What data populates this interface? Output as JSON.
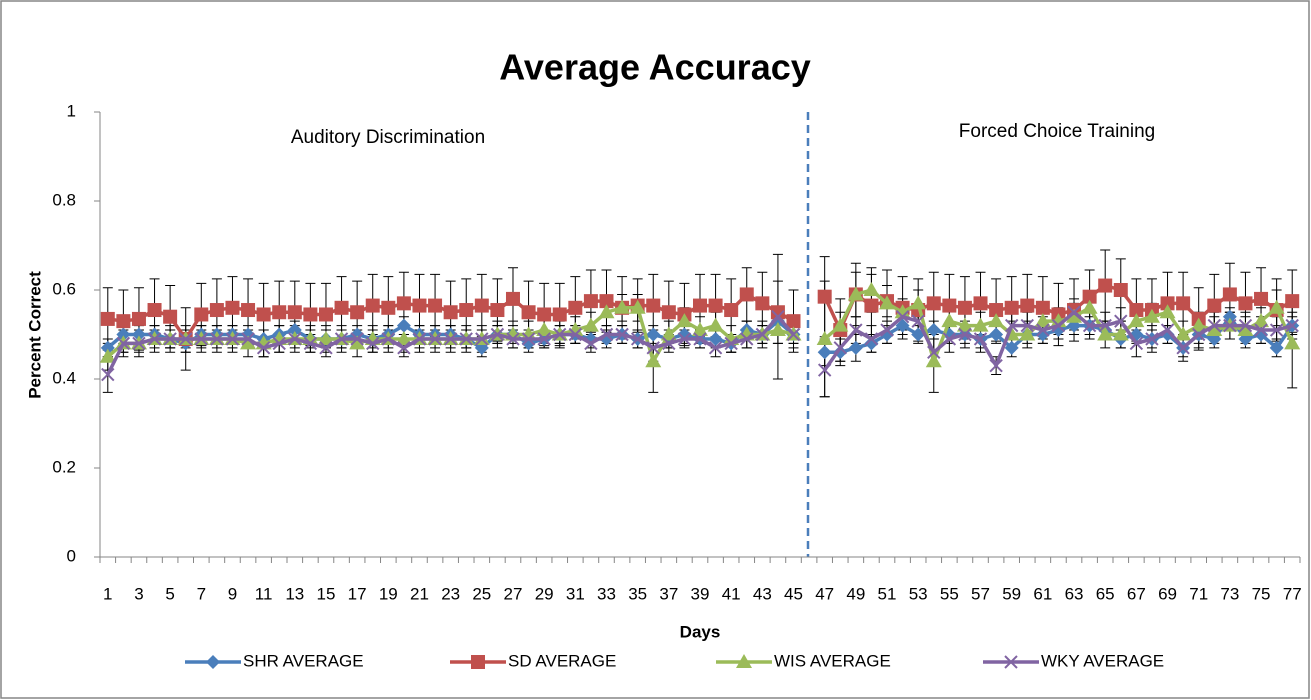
{
  "chart_data": {
    "type": "line",
    "title": "Average Accuracy",
    "x_label": "Days",
    "y_label": "Percent Correct",
    "annotations": [
      "Auditory Discrimination",
      "Forced Choice Training"
    ],
    "categories": [
      1,
      null,
      3,
      null,
      5,
      null,
      7,
      null,
      9,
      null,
      11,
      null,
      13,
      null,
      15,
      null,
      17,
      null,
      19,
      null,
      21,
      null,
      23,
      null,
      25,
      null,
      27,
      null,
      29,
      null,
      31,
      null,
      33,
      null,
      35,
      null,
      37,
      null,
      39,
      null,
      41,
      null,
      43,
      null,
      45,
      null,
      47,
      null,
      49,
      null,
      51,
      null,
      53,
      null,
      55,
      null,
      57,
      null,
      59,
      null,
      61,
      null,
      63,
      null,
      65,
      null,
      67,
      null,
      69,
      null,
      71,
      null,
      73,
      null,
      75,
      null,
      77
    ],
    "ylim": [
      0,
      1
    ],
    "yticks": [
      0,
      0.2,
      0.4,
      0.6,
      0.8,
      1
    ],
    "series": [
      {
        "name": "SHR AVERAGE",
        "color": "#4a7ebb",
        "marker": "diamond",
        "values": [
          0.47,
          0.5,
          0.5,
          0.5,
          0.49,
          0.48,
          0.5,
          0.5,
          0.5,
          0.5,
          0.49,
          0.5,
          0.51,
          0.49,
          0.49,
          0.49,
          0.5,
          0.49,
          0.5,
          0.52,
          0.5,
          0.5,
          0.5,
          0.49,
          0.47,
          0.5,
          0.5,
          0.48,
          0.49,
          0.5,
          0.5,
          0.49,
          0.49,
          0.5,
          0.49,
          0.5,
          0.49,
          0.5,
          0.49,
          0.49,
          0.48,
          0.51,
          0.5,
          0.53,
          0.5,
          null,
          0.46,
          0.46,
          0.47,
          0.48,
          0.5,
          0.52,
          0.5,
          0.51,
          0.5,
          0.5,
          0.49,
          0.5,
          0.47,
          0.5,
          0.5,
          0.51,
          0.52,
          0.52,
          0.51,
          0.49,
          0.5,
          0.49,
          0.5,
          0.47,
          0.5,
          0.49,
          0.54,
          0.49,
          0.5,
          0.47,
          0.52
        ],
        "errors": [
          0.02,
          0.02,
          0.02,
          0.02,
          0.02,
          0.02,
          0.02,
          0.02,
          0.02,
          0.02,
          0.02,
          0.02,
          0.02,
          0.02,
          0.02,
          0.02,
          0.02,
          0.02,
          0.02,
          0.02,
          0.02,
          0.02,
          0.02,
          0.02,
          0.02,
          0.02,
          0.02,
          0.02,
          0.02,
          0.02,
          0.02,
          0.02,
          0.02,
          0.02,
          0.02,
          0.02,
          0.02,
          0.02,
          0.02,
          0.02,
          0.02,
          0.02,
          0.02,
          0.02,
          0.02,
          null,
          0.03,
          0.03,
          0.03,
          0.02,
          0.02,
          0.02,
          0.02,
          0.02,
          0.02,
          0.02,
          0.02,
          0.02,
          0.02,
          0.02,
          0.02,
          0.02,
          0.02,
          0.02,
          0.02,
          0.02,
          0.02,
          0.02,
          0.02,
          0.02,
          0.02,
          0.02,
          0.02,
          0.02,
          0.02,
          0.02,
          0.02
        ]
      },
      {
        "name": "SD AVERAGE",
        "color": "#c0504d",
        "marker": "square",
        "values": [
          0.535,
          0.53,
          0.535,
          0.555,
          0.54,
          0.49,
          0.545,
          0.555,
          0.56,
          0.555,
          0.545,
          0.55,
          0.55,
          0.545,
          0.545,
          0.56,
          0.55,
          0.565,
          0.56,
          0.57,
          0.565,
          0.565,
          0.55,
          0.555,
          0.565,
          0.555,
          0.58,
          0.55,
          0.545,
          0.545,
          0.56,
          0.575,
          0.575,
          0.56,
          0.565,
          0.565,
          0.55,
          0.545,
          0.565,
          0.565,
          0.555,
          0.59,
          0.57,
          0.55,
          0.53,
          null,
          0.585,
          0.51,
          0.59,
          0.565,
          0.575,
          0.56,
          0.555,
          0.57,
          0.565,
          0.56,
          0.57,
          0.555,
          0.56,
          0.565,
          0.56,
          0.545,
          0.555,
          0.585,
          0.61,
          0.6,
          0.555,
          0.555,
          0.57,
          0.57,
          0.535,
          0.565,
          0.59,
          0.57,
          0.58,
          0.555,
          0.575
        ],
        "errors": [
          0.07,
          0.07,
          0.07,
          0.07,
          0.07,
          0.07,
          0.07,
          0.07,
          0.07,
          0.07,
          0.07,
          0.07,
          0.07,
          0.07,
          0.07,
          0.07,
          0.07,
          0.07,
          0.07,
          0.07,
          0.07,
          0.07,
          0.07,
          0.07,
          0.07,
          0.07,
          0.07,
          0.07,
          0.07,
          0.07,
          0.07,
          0.07,
          0.07,
          0.07,
          0.06,
          0.07,
          0.07,
          0.07,
          0.07,
          0.07,
          0.07,
          0.06,
          0.07,
          0.07,
          0.07,
          null,
          0.09,
          0.07,
          0.07,
          0.07,
          0.07,
          0.07,
          0.07,
          0.07,
          0.07,
          0.07,
          0.07,
          0.07,
          0.07,
          0.07,
          0.07,
          0.07,
          0.07,
          0.06,
          0.08,
          0.07,
          0.07,
          0.07,
          0.07,
          0.07,
          0.07,
          0.07,
          0.07,
          0.07,
          0.07,
          0.07,
          0.07
        ]
      },
      {
        "name": "WIS AVERAGE",
        "color": "#9bbb59",
        "marker": "triangle",
        "values": [
          0.45,
          0.48,
          0.48,
          0.49,
          0.49,
          0.49,
          0.49,
          0.49,
          0.49,
          0.48,
          0.48,
          0.49,
          0.49,
          0.49,
          0.49,
          0.49,
          0.48,
          0.49,
          0.49,
          0.49,
          0.49,
          0.49,
          0.49,
          0.49,
          0.49,
          0.5,
          0.5,
          0.5,
          0.51,
          0.5,
          0.51,
          0.52,
          0.55,
          0.56,
          0.56,
          0.44,
          0.5,
          0.53,
          0.51,
          0.52,
          0.49,
          0.5,
          0.5,
          0.51,
          0.5,
          null,
          0.49,
          0.52,
          0.59,
          0.6,
          0.57,
          0.55,
          0.57,
          0.44,
          0.53,
          0.52,
          0.52,
          0.53,
          0.5,
          0.5,
          0.53,
          0.53,
          0.54,
          0.56,
          0.5,
          0.5,
          0.53,
          0.54,
          0.55,
          0.5,
          0.52,
          0.51,
          0.52,
          0.51,
          0.53,
          0.56,
          0.48
        ],
        "errors": [
          0.03,
          0.03,
          0.03,
          0.03,
          0.03,
          0.03,
          0.03,
          0.03,
          0.03,
          0.03,
          0.03,
          0.03,
          0.03,
          0.03,
          0.03,
          0.03,
          0.03,
          0.03,
          0.03,
          0.03,
          0.03,
          0.03,
          0.03,
          0.03,
          0.03,
          0.03,
          0.03,
          0.03,
          0.03,
          0.03,
          0.03,
          0.03,
          0.03,
          0.03,
          0.03,
          0.07,
          0.03,
          0.03,
          0.03,
          0.03,
          0.03,
          0.03,
          0.03,
          0.03,
          0.03,
          null,
          0.13,
          0.03,
          0.05,
          0.05,
          0.04,
          0.03,
          0.03,
          0.07,
          0.03,
          0.03,
          0.03,
          0.03,
          0.03,
          0.03,
          0.03,
          0.03,
          0.03,
          0.03,
          0.03,
          0.03,
          0.03,
          0.03,
          0.03,
          0.03,
          0.03,
          0.03,
          0.03,
          0.03,
          0.03,
          0.04,
          0.1
        ]
      },
      {
        "name": "WKY AVERAGE",
        "color": "#8064a2",
        "marker": "x",
        "values": [
          0.41,
          0.48,
          0.48,
          0.49,
          0.49,
          0.49,
          0.49,
          0.49,
          0.49,
          0.49,
          0.47,
          0.48,
          0.49,
          0.48,
          0.47,
          0.49,
          0.49,
          0.48,
          0.49,
          0.47,
          0.49,
          0.49,
          0.49,
          0.49,
          0.49,
          0.5,
          0.49,
          0.49,
          0.49,
          0.5,
          0.5,
          0.48,
          0.5,
          0.5,
          0.49,
          0.47,
          0.48,
          0.49,
          0.49,
          0.47,
          0.48,
          0.49,
          0.5,
          0.54,
          0.5,
          null,
          0.42,
          0.47,
          0.51,
          0.49,
          0.51,
          0.54,
          0.53,
          0.46,
          0.49,
          0.5,
          0.49,
          0.43,
          0.52,
          0.52,
          0.51,
          0.52,
          0.55,
          0.52,
          0.52,
          0.53,
          0.48,
          0.49,
          0.51,
          0.47,
          0.5,
          0.52,
          0.52,
          0.52,
          0.51,
          0.51,
          0.52
        ],
        "errors": [
          0.04,
          0.02,
          0.02,
          0.02,
          0.02,
          0.02,
          0.02,
          0.02,
          0.02,
          0.02,
          0.02,
          0.02,
          0.02,
          0.02,
          0.02,
          0.02,
          0.02,
          0.02,
          0.02,
          0.02,
          0.02,
          0.02,
          0.02,
          0.02,
          0.02,
          0.02,
          0.02,
          0.02,
          0.02,
          0.02,
          0.02,
          0.02,
          0.02,
          0.02,
          0.02,
          0.03,
          0.02,
          0.02,
          0.02,
          0.02,
          0.02,
          0.02,
          0.02,
          0.14,
          0.02,
          null,
          0.06,
          0.03,
          0.03,
          0.03,
          0.03,
          0.03,
          0.03,
          0.03,
          0.03,
          0.03,
          0.03,
          0.02,
          0.03,
          0.03,
          0.03,
          0.03,
          0.03,
          0.03,
          0.03,
          0.03,
          0.03,
          0.03,
          0.03,
          0.03,
          0.03,
          0.03,
          0.03,
          0.03,
          0.03,
          0.03,
          0.03
        ]
      }
    ]
  }
}
